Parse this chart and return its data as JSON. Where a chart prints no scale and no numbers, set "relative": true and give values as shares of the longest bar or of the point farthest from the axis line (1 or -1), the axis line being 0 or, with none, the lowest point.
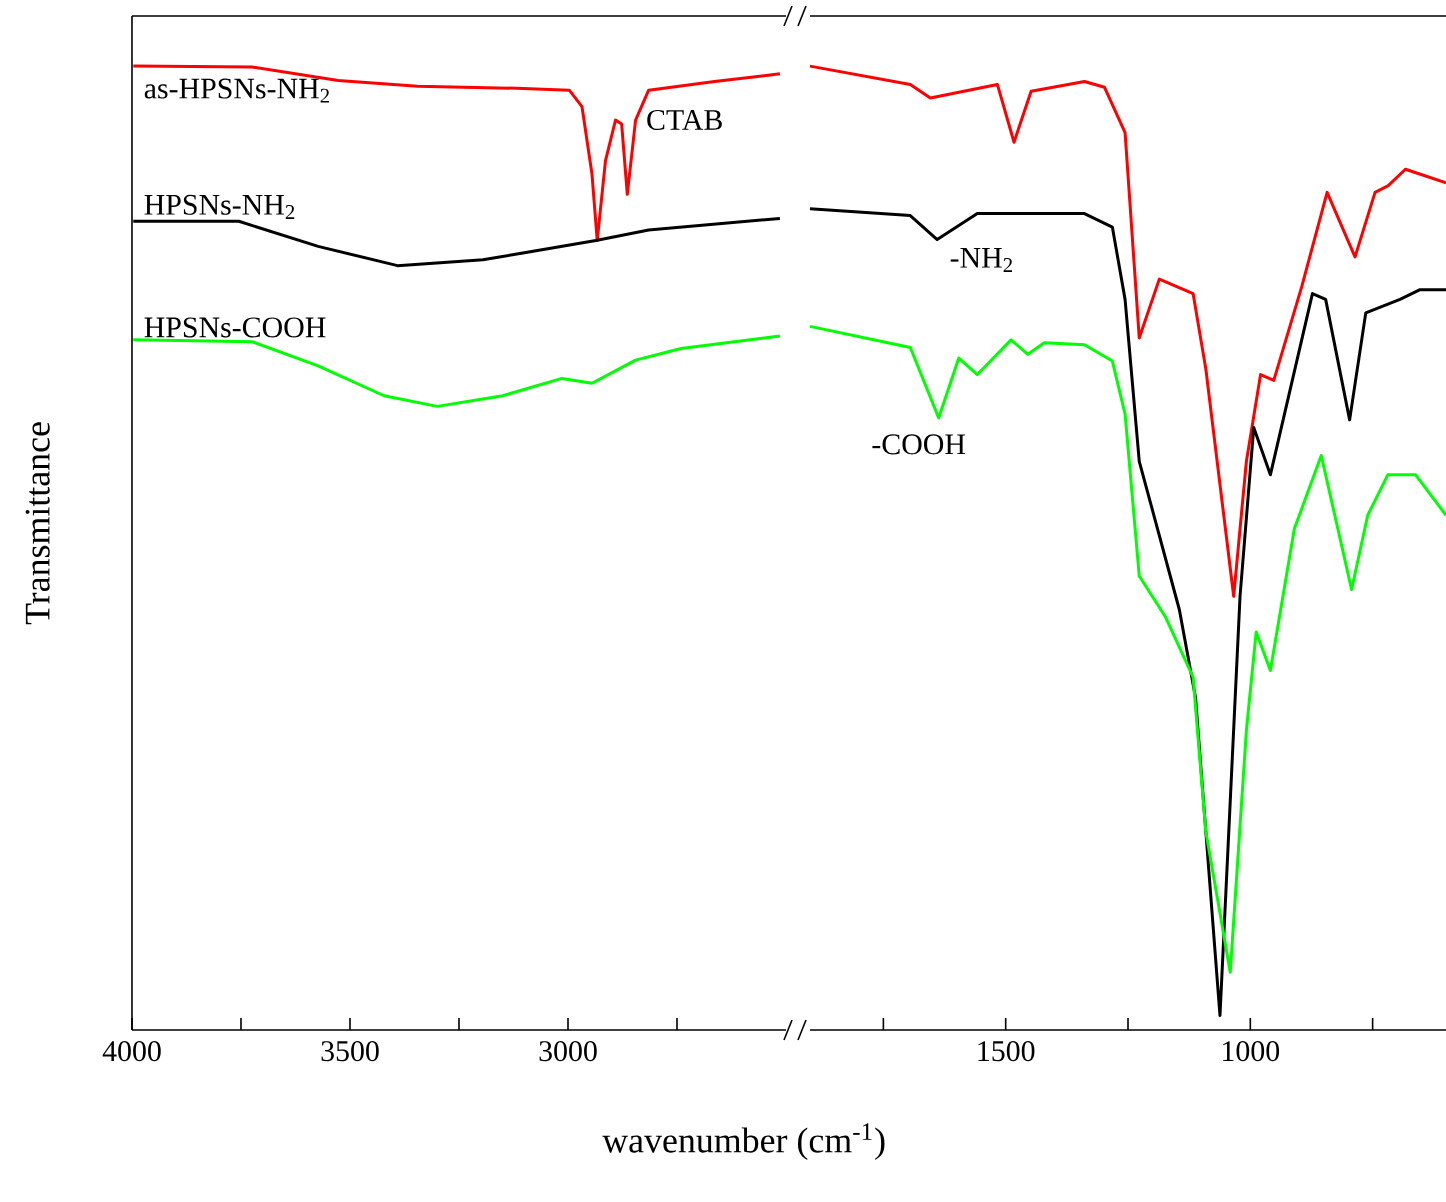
{
  "chart_data": [
    {
      "type": "line",
      "relative": true,
      "xlabel": "wavenumber (cm$^{-1}$)",
      "ylabel": "Transmittance",
      "grid": false,
      "line_style": "solid",
      "xlim": [
        4000,
        2500
      ],
      "xticks": [
        4000,
        {
          "value": 3750,
          "label": null
        },
        3500,
        {
          "value": 3250,
          "label": null
        },
        3000,
        {
          "value": 2750,
          "label": null
        }
      ],
      "annotations": [
        {
          "text": "CTAB",
          "x": 2877,
          "y": 0.94
        }
      ],
      "series": [
        {
          "name": "as-HPSNs-NH$_{2}$",
          "color": "#ff0000",
          "x": [
            3997,
            3724,
            3527,
            3345,
            3118,
            2997,
            2968,
            2945,
            2933,
            2914,
            2891,
            2877,
            2864,
            2845,
            2815,
            2664,
            2514
          ],
          "values": [
            1.0,
            0.999,
            0.985,
            0.979,
            0.977,
            0.975,
            0.958,
            0.888,
            0.819,
            0.902,
            0.944,
            0.94,
            0.867,
            0.944,
            0.975,
            0.984,
            0.992
          ]
        },
        {
          "name": "HPSNs-NH$_{2}$",
          "color": "#000000",
          "x": [
            3997,
            3755,
            3573,
            3391,
            3195,
            2936,
            2815,
            2514
          ],
          "values": [
            0.839,
            0.839,
            0.813,
            0.793,
            0.799,
            0.819,
            0.83,
            0.842
          ]
        },
        {
          "name": "HPSNs-COOH",
          "color": "#00ff00",
          "x": [
            3997,
            3724,
            3573,
            3422,
            3300,
            3150,
            3014,
            2945,
            2845,
            2741,
            2514
          ],
          "values": [
            0.716,
            0.714,
            0.689,
            0.658,
            0.647,
            0.658,
            0.676,
            0.671,
            0.695,
            0.707,
            0.72
          ]
        }
      ]
    },
    {
      "type": "line",
      "relative": true,
      "grid": false,
      "line_style": "solid",
      "xlim": [
        1900,
        600
      ],
      "xticks": [
        {
          "value": 1750,
          "label": null
        },
        1500,
        {
          "value": 1250,
          "label": null
        },
        1000,
        {
          "value": 750,
          "label": null
        }
      ],
      "annotations": [
        {
          "text": "-NH$_{2}$",
          "x": 1640,
          "y": 0.82
        },
        {
          "text": "-COOH",
          "x": 1637,
          "y": 0.635
        }
      ],
      "series": [
        {
          "color": "#ff0000",
          "x": [
            1900,
            1695,
            1654,
            1517,
            1483,
            1448,
            1339,
            1298,
            1256,
            1227,
            1186,
            1117,
            1091,
            1034,
            1008,
            979,
            952,
            895,
            843,
            786,
            745,
            718,
            683,
            600
          ],
          "values": [
            1.0,
            0.981,
            0.967,
            0.981,
            0.921,
            0.974,
            0.984,
            0.978,
            0.931,
            0.718,
            0.779,
            0.764,
            0.686,
            0.45,
            0.59,
            0.68,
            0.674,
            0.771,
            0.869,
            0.802,
            0.869,
            0.876,
            0.893,
            0.879
          ]
        },
        {
          "color": "#000000",
          "x": [
            1900,
            1695,
            1640,
            1558,
            1339,
            1282,
            1256,
            1227,
            1145,
            1112,
            1062,
            1021,
            993,
            959,
            873,
            846,
            797,
            764,
            694,
            653,
            600
          ],
          "values": [
            0.852,
            0.845,
            0.82,
            0.847,
            0.847,
            0.833,
            0.758,
            0.59,
            0.436,
            0.345,
            0.015,
            0.45,
            0.625,
            0.576,
            0.764,
            0.758,
            0.633,
            0.744,
            0.758,
            0.768,
            0.768
          ]
        },
        {
          "color": "#00ff00",
          "x": [
            1900,
            1695,
            1637,
            1596,
            1558,
            1489,
            1455,
            1421,
            1339,
            1282,
            1256,
            1227,
            1174,
            1117,
            1091,
            1041,
            1008,
            988,
            959,
            910,
            855,
            793,
            760,
            719,
            662,
            600
          ],
          "values": [
            0.73,
            0.708,
            0.635,
            0.697,
            0.68,
            0.716,
            0.701,
            0.713,
            0.711,
            0.694,
            0.639,
            0.471,
            0.429,
            0.366,
            0.206,
            0.06,
            0.311,
            0.413,
            0.373,
            0.52,
            0.596,
            0.457,
            0.534,
            0.576,
            0.576,
            0.534
          ]
        }
      ]
    }
  ]
}
